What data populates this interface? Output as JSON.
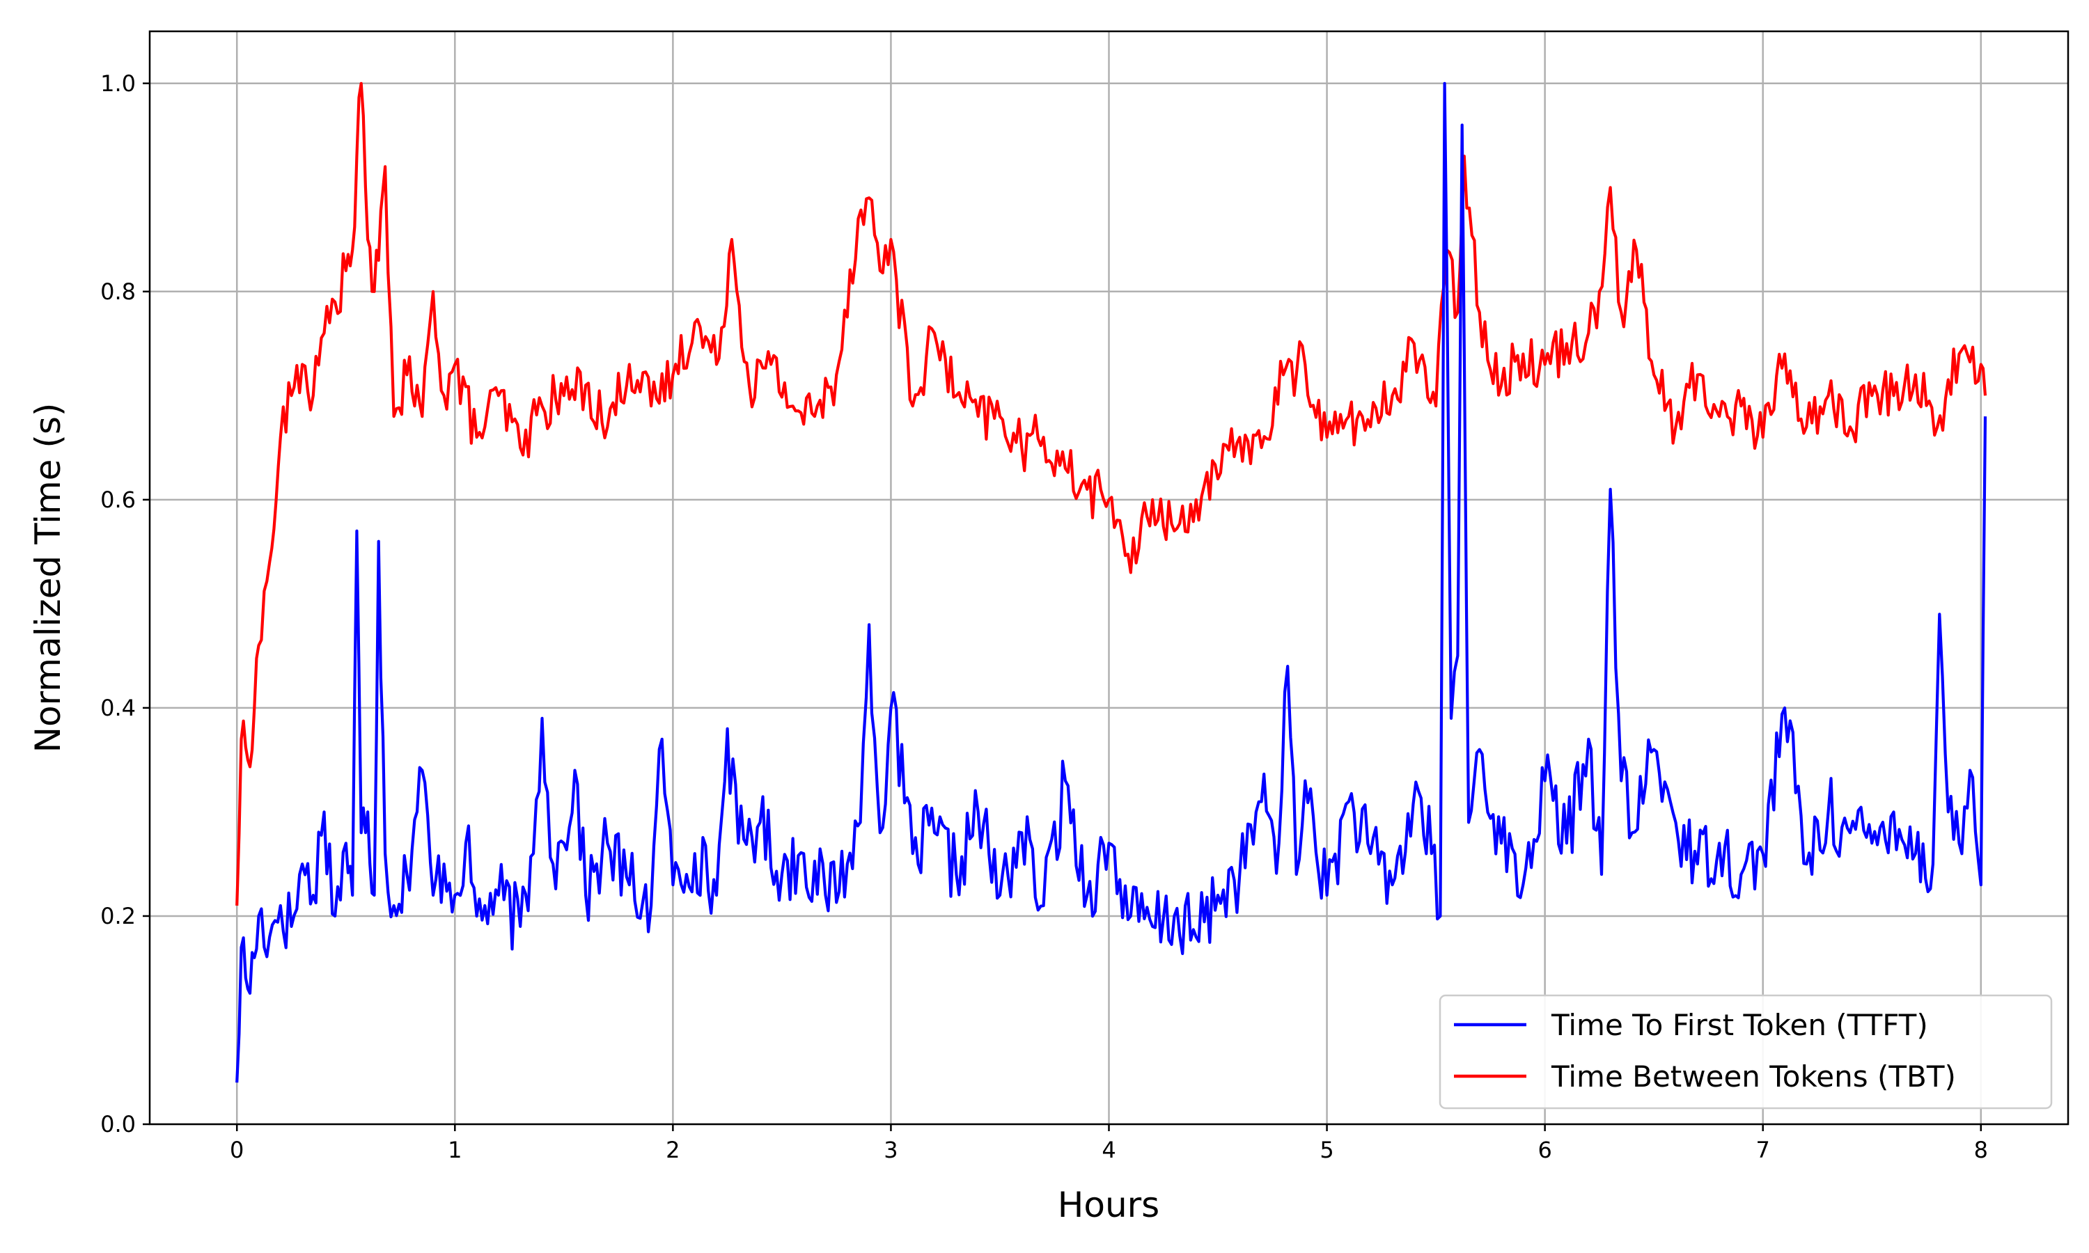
{
  "chart_data": {
    "type": "line",
    "title": "",
    "xlabel": "Hours",
    "ylabel": "Normalized Time (s)",
    "xlim": [
      -0.4,
      8.4
    ],
    "ylim": [
      0.0,
      1.05
    ],
    "xticks": [
      0,
      1,
      2,
      3,
      4,
      5,
      6,
      7,
      8
    ],
    "xtick_labels": [
      "0",
      "1",
      "2",
      "3",
      "4",
      "5",
      "6",
      "7",
      "8"
    ],
    "yticks": [
      0.0,
      0.2,
      0.4,
      0.6,
      0.8,
      1.0
    ],
    "ytick_labels": [
      "0.0",
      "0.2",
      "0.4",
      "0.6",
      "0.8",
      "1.0"
    ],
    "grid": true,
    "legend_position": "bottom-right",
    "series": [
      {
        "name": "Time To First Token (TTFT)",
        "color": "#0000ff",
        "x": [
          0,
          0.02,
          0.05,
          0.08,
          0.1,
          0.15,
          0.2,
          0.25,
          0.3,
          0.35,
          0.4,
          0.45,
          0.5,
          0.53,
          0.55,
          0.57,
          0.6,
          0.63,
          0.65,
          0.68,
          0.72,
          0.78,
          0.85,
          0.9,
          0.95,
          1.0,
          1.05,
          1.1,
          1.2,
          1.3,
          1.36,
          1.4,
          1.45,
          1.5,
          1.55,
          1.6,
          1.7,
          1.8,
          1.9,
          1.95,
          2.0,
          2.1,
          2.2,
          2.25,
          2.3,
          2.4,
          2.5,
          2.6,
          2.7,
          2.8,
          2.86,
          2.9,
          2.95,
          3.0,
          3.1,
          3.2,
          3.3,
          3.4,
          3.5,
          3.6,
          3.7,
          3.8,
          3.9,
          4.0,
          4.1,
          4.2,
          4.3,
          4.4,
          4.5,
          4.6,
          4.7,
          4.78,
          4.82,
          4.86,
          4.9,
          5.0,
          5.1,
          5.2,
          5.3,
          5.42,
          5.48,
          5.52,
          5.54,
          5.57,
          5.6,
          5.62,
          5.65,
          5.7,
          5.8,
          5.9,
          6.0,
          6.1,
          6.2,
          6.26,
          6.3,
          6.35,
          6.4,
          6.5,
          6.6,
          6.7,
          6.8,
          6.9,
          7.0,
          7.1,
          7.2,
          7.3,
          7.4,
          7.5,
          7.6,
          7.7,
          7.78,
          7.81,
          7.85,
          7.9,
          7.95,
          8.0,
          8.02
        ],
        "values": [
          0.04,
          0.17,
          0.13,
          0.16,
          0.2,
          0.18,
          0.21,
          0.19,
          0.25,
          0.22,
          0.3,
          0.2,
          0.27,
          0.22,
          0.57,
          0.28,
          0.3,
          0.22,
          0.56,
          0.26,
          0.21,
          0.24,
          0.34,
          0.22,
          0.25,
          0.22,
          0.27,
          0.2,
          0.22,
          0.19,
          0.26,
          0.39,
          0.25,
          0.27,
          0.34,
          0.22,
          0.27,
          0.23,
          0.21,
          0.37,
          0.23,
          0.26,
          0.22,
          0.38,
          0.27,
          0.29,
          0.24,
          0.26,
          0.22,
          0.25,
          0.29,
          0.48,
          0.28,
          0.4,
          0.26,
          0.28,
          0.24,
          0.3,
          0.22,
          0.28,
          0.21,
          0.33,
          0.22,
          0.27,
          0.2,
          0.19,
          0.2,
          0.18,
          0.22,
          0.24,
          0.31,
          0.27,
          0.44,
          0.24,
          0.33,
          0.22,
          0.31,
          0.26,
          0.23,
          0.32,
          0.26,
          0.2,
          1.0,
          0.39,
          0.45,
          0.96,
          0.29,
          0.36,
          0.27,
          0.23,
          0.33,
          0.27,
          0.37,
          0.24,
          0.61,
          0.33,
          0.28,
          0.36,
          0.29,
          0.25,
          0.27,
          0.24,
          0.26,
          0.4,
          0.25,
          0.3,
          0.28,
          0.27,
          0.3,
          0.26,
          0.25,
          0.49,
          0.3,
          0.27,
          0.34,
          0.23,
          0.68
        ],
        "style": "solid"
      },
      {
        "name": "Time Between Tokens (TBT)",
        "color": "#ff0000",
        "x": [
          0,
          0.02,
          0.05,
          0.08,
          0.1,
          0.15,
          0.18,
          0.2,
          0.25,
          0.3,
          0.35,
          0.4,
          0.45,
          0.5,
          0.53,
          0.55,
          0.57,
          0.6,
          0.63,
          0.65,
          0.68,
          0.72,
          0.78,
          0.85,
          0.9,
          0.95,
          1.0,
          1.1,
          1.2,
          1.3,
          1.4,
          1.5,
          1.6,
          1.7,
          1.8,
          1.9,
          2.0,
          2.1,
          2.2,
          2.27,
          2.35,
          2.45,
          2.55,
          2.65,
          2.75,
          2.85,
          2.9,
          2.95,
          3.0,
          3.1,
          3.2,
          3.3,
          3.4,
          3.5,
          3.6,
          3.7,
          3.8,
          3.9,
          4.0,
          4.05,
          4.1,
          4.2,
          4.3,
          4.4,
          4.5,
          4.6,
          4.7,
          4.8,
          4.9,
          5.0,
          5.1,
          5.2,
          5.3,
          5.4,
          5.5,
          5.55,
          5.6,
          5.63,
          5.7,
          5.8,
          5.9,
          6.0,
          6.1,
          6.2,
          6.25,
          6.3,
          6.35,
          6.42,
          6.5,
          6.6,
          6.7,
          6.8,
          6.9,
          7.0,
          7.1,
          7.2,
          7.3,
          7.4,
          7.5,
          7.6,
          7.7,
          7.8,
          7.9,
          8.0,
          8.02
        ],
        "values": [
          0.21,
          0.37,
          0.35,
          0.4,
          0.46,
          0.54,
          0.6,
          0.66,
          0.7,
          0.73,
          0.7,
          0.76,
          0.79,
          0.82,
          0.84,
          0.93,
          1.0,
          0.85,
          0.8,
          0.83,
          0.92,
          0.68,
          0.72,
          0.68,
          0.8,
          0.7,
          0.73,
          0.66,
          0.7,
          0.65,
          0.69,
          0.7,
          0.71,
          0.67,
          0.73,
          0.69,
          0.72,
          0.77,
          0.73,
          0.85,
          0.71,
          0.73,
          0.69,
          0.68,
          0.72,
          0.87,
          0.89,
          0.82,
          0.85,
          0.69,
          0.76,
          0.7,
          0.68,
          0.68,
          0.65,
          0.66,
          0.63,
          0.61,
          0.6,
          0.58,
          0.53,
          0.6,
          0.57,
          0.6,
          0.62,
          0.66,
          0.65,
          0.72,
          0.73,
          0.66,
          0.68,
          0.67,
          0.7,
          0.75,
          0.69,
          0.84,
          0.78,
          0.93,
          0.78,
          0.71,
          0.74,
          0.73,
          0.75,
          0.76,
          0.8,
          0.9,
          0.78,
          0.84,
          0.72,
          0.67,
          0.72,
          0.68,
          0.69,
          0.66,
          0.74,
          0.67,
          0.7,
          0.67,
          0.7,
          0.7,
          0.72,
          0.67,
          0.74,
          0.73,
          0.7
        ],
        "style": "solid"
      }
    ]
  }
}
